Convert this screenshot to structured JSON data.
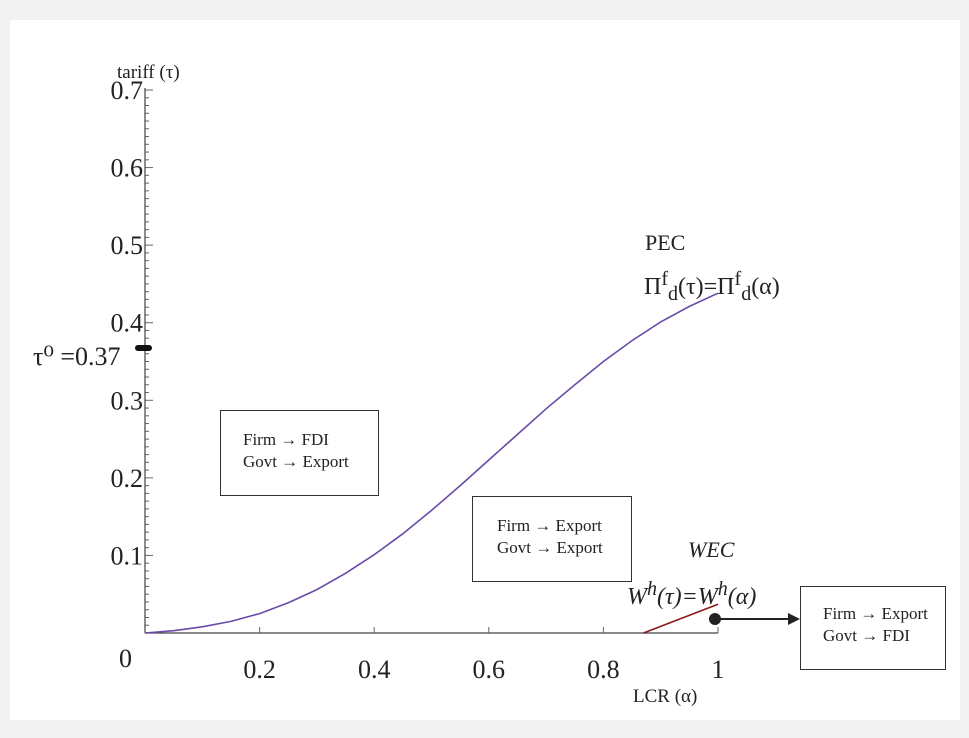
{
  "chart_data": {
    "type": "line",
    "xlabel": "LCR (α)",
    "ylabel": "tariff (τ)",
    "xlim": [
      0,
      1
    ],
    "ylim": [
      0,
      0.72
    ],
    "x_ticks": [
      "0.2",
      "0.4",
      "0.6",
      "0.8",
      "1"
    ],
    "y_ticks": [
      "0.1",
      "0.2",
      "0.3",
      "0.4",
      "0.5",
      "0.6",
      "0.7"
    ],
    "origin_label": "0",
    "series": [
      {
        "name": "PEC",
        "color": "#6b4aa8",
        "x": [
          0,
          0.05,
          0.1,
          0.15,
          0.2,
          0.25,
          0.3,
          0.35,
          0.4,
          0.45,
          0.5,
          0.55,
          0.6,
          0.65,
          0.7,
          0.75,
          0.8,
          0.85,
          0.9,
          0.95,
          1.0
        ],
        "y": [
          0,
          0.003,
          0.008,
          0.015,
          0.025,
          0.039,
          0.056,
          0.077,
          0.101,
          0.128,
          0.158,
          0.19,
          0.223,
          0.256,
          0.289,
          0.32,
          0.35,
          0.377,
          0.401,
          0.421,
          0.438
        ]
      },
      {
        "name": "WEC",
        "color": "#8b1a1a",
        "x": [
          0.87,
          1.0
        ],
        "y": [
          0,
          0.037
        ]
      }
    ],
    "annotations": {
      "pec_label": "PEC",
      "pec_formula": "Π<sup>f</sup><sub>d</sub>(τ)=Π<sup>f</sup><sub>d</sub>(α)",
      "wec_label": "WEC",
      "wec_formula": "W<sup>h</sup>(τ)=W<sup>h</sup>(α)",
      "tau0_label": "τ⁰ =0.37",
      "tau0_value": 0.37,
      "arrow_start_x": 1.0
    },
    "boxes": [
      {
        "line1": "Firm → FDI",
        "line2": "Govt → Export"
      },
      {
        "line1": "Firm → Export",
        "line2": "Govt → Export"
      },
      {
        "line1": "Firm → Export",
        "line2": "Govt → FDI"
      }
    ]
  }
}
